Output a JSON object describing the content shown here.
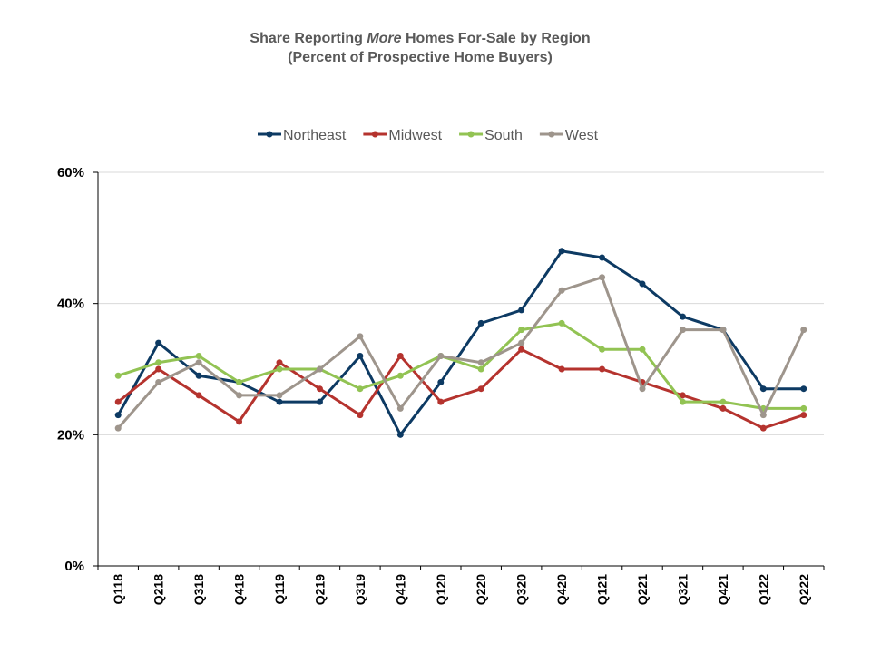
{
  "title": {
    "prefix": "Share Reporting ",
    "emphasis": "More",
    "suffix": " Homes For-Sale by Region",
    "subtitle": "(Percent of Prospective Home Buyers)"
  },
  "chart_data": {
    "type": "line",
    "categories": [
      "Q118",
      "Q218",
      "Q318",
      "Q418",
      "Q119",
      "Q219",
      "Q319",
      "Q419",
      "Q120",
      "Q220",
      "Q320",
      "Q420",
      "Q121",
      "Q221",
      "Q321",
      "Q421",
      "Q122",
      "Q222"
    ],
    "ylim": [
      0,
      60
    ],
    "yticks": [
      0,
      20,
      40,
      60
    ],
    "ytick_labels": [
      "0%",
      "20%",
      "40%",
      "60%"
    ],
    "grid": true,
    "legend_position": "top",
    "series": [
      {
        "name": "Northeast",
        "color": "#0d3a63",
        "values": [
          23,
          34,
          29,
          28,
          25,
          25,
          32,
          20,
          28,
          37,
          39,
          48,
          47,
          43,
          38,
          36,
          27,
          27
        ]
      },
      {
        "name": "Midwest",
        "color": "#b5332e",
        "values": [
          25,
          30,
          26,
          22,
          31,
          27,
          23,
          32,
          25,
          27,
          33,
          30,
          30,
          28,
          26,
          24,
          21,
          23
        ]
      },
      {
        "name": "South",
        "color": "#92c353",
        "values": [
          29,
          31,
          32,
          28,
          30,
          30,
          27,
          29,
          32,
          30,
          36,
          37,
          33,
          33,
          25,
          25,
          24,
          24
        ]
      },
      {
        "name": "West",
        "color": "#9e958c",
        "values": [
          21,
          28,
          31,
          26,
          26,
          30,
          35,
          24,
          32,
          31,
          34,
          42,
          44,
          27,
          36,
          36,
          23,
          36
        ]
      }
    ]
  }
}
